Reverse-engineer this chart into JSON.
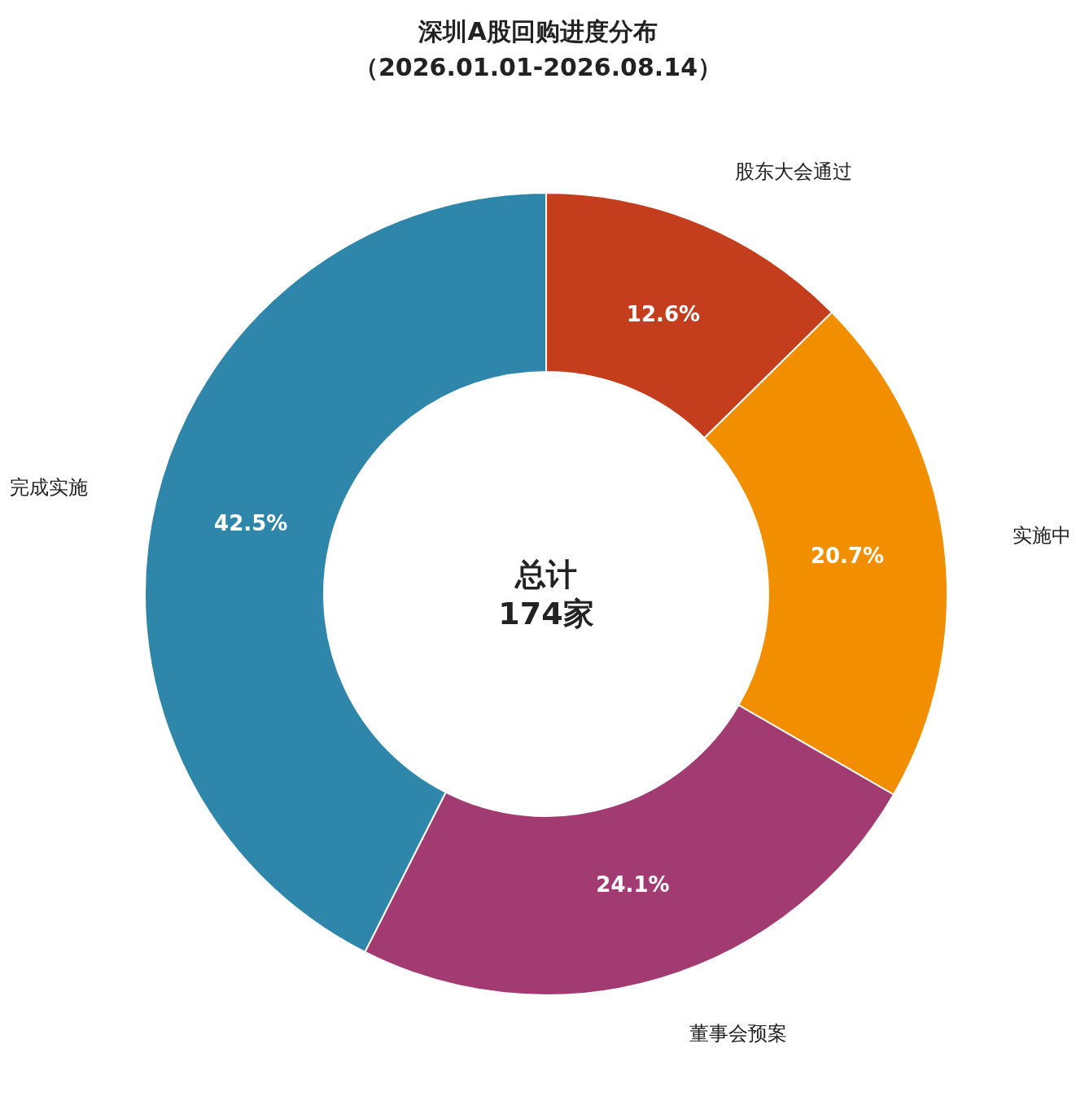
{
  "chart_data": {
    "type": "donut",
    "title": "深圳A股回购进度分布",
    "subtitle": "（2026.01.01-2026.08.14）",
    "categories": [
      "股东大会通过",
      "实施中",
      "董事会预案",
      "完成实施"
    ],
    "values": [
      12.6,
      20.7,
      24.1,
      42.5
    ],
    "value_labels": [
      "12.6%",
      "20.7%",
      "24.1%",
      "42.5%"
    ],
    "colors": [
      "#c43e1e",
      "#f18f01",
      "#a23b72",
      "#2e86ab"
    ],
    "annotations": [
      "总计\n174家"
    ],
    "legend": false
  }
}
